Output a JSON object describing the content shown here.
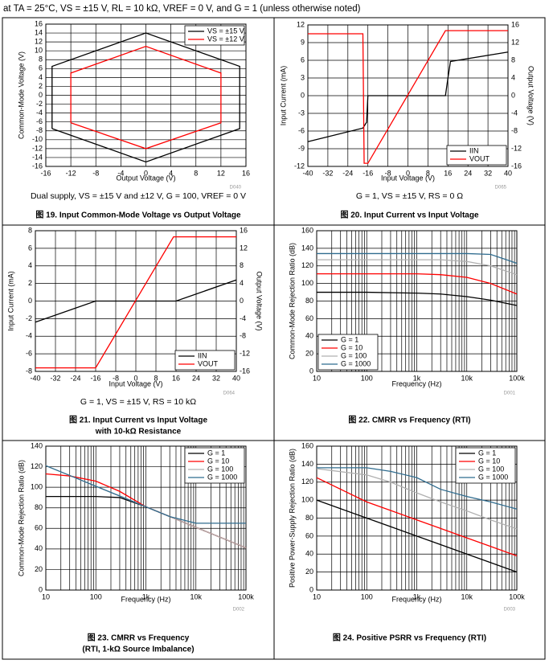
{
  "header": "at TA = 25°C, VS = ±15 V, RL = 10 kΩ, VREF = 0 V, and G = 1 (unless otherwise noted)",
  "chart_data": [
    {
      "type": "line",
      "caption": [
        "图 19. Input Common-Mode Voltage vs Output Voltage"
      ],
      "note": "Dual supply, VS = ±15 V and ±12 V, G = 100, VREF = 0 V",
      "code": "D040",
      "xlabel": "Output Voltage (V)",
      "ylabel": "Common-Mode Voltage (V)",
      "xlim": [
        -16,
        16
      ],
      "xticks": [
        -16,
        -12,
        -8,
        -4,
        0,
        4,
        8,
        12,
        16
      ],
      "ylim": [
        -16,
        16
      ],
      "yticks": [
        -16,
        -14,
        -12,
        -10,
        -8,
        -6,
        -4,
        -2,
        0,
        2,
        4,
        6,
        8,
        10,
        12,
        14,
        16
      ],
      "grid": true,
      "legend": "upper right",
      "series": [
        {
          "name": "VS = ±15 V",
          "color": "#000000",
          "x": [
            -15,
            -15,
            0,
            15,
            15,
            0,
            -15
          ],
          "values": [
            -7.5,
            6.5,
            14,
            6.5,
            -7.5,
            -15,
            -7.5
          ]
        },
        {
          "name": "VS = ±12 V",
          "color": "#ff0000",
          "x": [
            -12,
            -12,
            0,
            12,
            12,
            0,
            -12
          ],
          "values": [
            -6.2,
            5,
            11,
            5,
            -6.2,
            -12,
            -6.2
          ]
        }
      ]
    },
    {
      "type": "line",
      "caption": [
        "图 20. Input Current vs Input Voltage"
      ],
      "note": "G = 1, VS = ±15 V, RS = 0 Ω",
      "code": "D065",
      "xlabel": "Input Voltage (V)",
      "ylabel": "Input Current (mA)",
      "y2label": "Output Voltage (V)",
      "xlim": [
        -40,
        40
      ],
      "xticks": [
        -40,
        -32,
        -24,
        -16,
        -8,
        0,
        8,
        16,
        24,
        32,
        40
      ],
      "ylim": [
        -12,
        12
      ],
      "yticks": [
        -12,
        -9,
        -6,
        -3,
        0,
        3,
        6,
        9,
        12
      ],
      "y2lim": [
        -16,
        16
      ],
      "y2ticks": [
        -16,
        -12,
        -8,
        -4,
        0,
        4,
        8,
        12,
        16
      ],
      "grid": true,
      "legend": "lower right",
      "series": [
        {
          "name": "IIN",
          "color": "#000000",
          "x": [
            -40,
            -18,
            -16.5,
            -16,
            15,
            16,
            17,
            40
          ],
          "values": [
            -7.8,
            -5.5,
            -4.5,
            0,
            0,
            3,
            5.8,
            7.4
          ]
        },
        {
          "name": "VOUT",
          "color": "#ff0000",
          "axis": "y2",
          "x": [
            -40,
            -18,
            -17.5,
            -16,
            15,
            40
          ],
          "values": [
            14,
            14,
            -15.3,
            -15.3,
            14.7,
            14.7
          ]
        }
      ]
    },
    {
      "type": "line",
      "caption": [
        "图 21. Input Current vs Input Voltage",
        "with 10-kΩ Resistance"
      ],
      "note": "G = 1, VS = ±15 V, RS = 10 kΩ",
      "code": "D064",
      "xlabel": "Input Voltage (V)",
      "ylabel": "Input Current (mA)",
      "y2label": "Output Voltage (V)",
      "xlim": [
        -40,
        40
      ],
      "xticks": [
        -40,
        -32,
        -24,
        -16,
        -8,
        0,
        8,
        16,
        24,
        32,
        40
      ],
      "ylim": [
        -8,
        8
      ],
      "yticks": [
        -8,
        -6,
        -4,
        -2,
        0,
        2,
        4,
        6,
        8
      ],
      "y2lim": [
        -16,
        16
      ],
      "y2ticks": [
        -16,
        -12,
        -8,
        -4,
        0,
        4,
        8,
        12,
        16
      ],
      "grid": true,
      "legend": "lower right",
      "series": [
        {
          "name": "IIN",
          "color": "#000000",
          "x": [
            -40,
            -16,
            16,
            40
          ],
          "values": [
            -2.4,
            0,
            0,
            2.4
          ]
        },
        {
          "name": "VOUT",
          "color": "#ff0000",
          "axis": "y2",
          "x": [
            -40,
            -16,
            15,
            40
          ],
          "values": [
            -15.2,
            -15.2,
            14.6,
            14.6
          ]
        }
      ]
    },
    {
      "type": "line",
      "caption": [
        "图 22. CMRR vs Frequency (RTI)"
      ],
      "code": "D001",
      "xlabel": "Frequency (Hz)",
      "ylabel": "Common-Mode Rejection Ratio (dB)",
      "xlog": true,
      "xlim": [
        10,
        100000
      ],
      "xticks": [
        10,
        100,
        {
          "value": 1000,
          "label": "1k"
        },
        {
          "value": 10000,
          "label": "10k"
        },
        {
          "value": 100000,
          "label": "100k"
        }
      ],
      "ylim": [
        0,
        160
      ],
      "yticks": [
        0,
        20,
        40,
        60,
        80,
        100,
        120,
        140,
        160
      ],
      "grid": true,
      "legend": "lower left",
      "series": [
        {
          "name": "G = 1",
          "color": "#000000",
          "x": [
            10,
            100,
            1000,
            3000,
            10000,
            30000,
            100000
          ],
          "values": [
            90,
            90,
            89,
            88,
            85,
            81,
            75
          ]
        },
        {
          "name": "G = 10",
          "color": "#ff0000",
          "x": [
            10,
            100,
            1000,
            3000,
            10000,
            30000,
            100000
          ],
          "values": [
            111,
            111,
            111,
            110,
            107,
            100,
            88
          ]
        },
        {
          "name": "G = 100",
          "color": "#b0b0b0",
          "x": [
            10,
            100,
            1000,
            3000,
            10000,
            30000,
            100000
          ],
          "values": [
            127,
            127,
            127,
            127,
            125,
            120,
            110
          ]
        },
        {
          "name": "G = 1000",
          "color": "#2f6c8f",
          "x": [
            10,
            100,
            1000,
            3000,
            10000,
            30000,
            100000
          ],
          "values": [
            134,
            134,
            134,
            134,
            134,
            133,
            123
          ]
        }
      ]
    },
    {
      "type": "line",
      "caption": [
        "图 23. CMRR vs Frequency",
        "(RTI, 1-kΩ Source Imbalance)"
      ],
      "code": "D002",
      "xlabel": "Frequency (Hz)",
      "ylabel": "Common-Mode Rejection Ratio (dB)",
      "xlog": true,
      "xlim": [
        10,
        100000
      ],
      "xticks": [
        10,
        100,
        {
          "value": 1000,
          "label": "1k"
        },
        {
          "value": 10000,
          "label": "10k"
        },
        {
          "value": 100000,
          "label": "100k"
        }
      ],
      "ylim": [
        0,
        140
      ],
      "yticks": [
        0,
        20,
        40,
        60,
        80,
        100,
        120,
        140
      ],
      "grid": true,
      "legend": "upper right",
      "series": [
        {
          "name": "G = 1",
          "color": "#000000",
          "x": [
            10,
            30,
            100,
            300,
            1000,
            3000,
            10000,
            20000,
            30000,
            100000
          ],
          "values": [
            91,
            91,
            91,
            90,
            81,
            71.5,
            61,
            55,
            51.5,
            41
          ]
        },
        {
          "name": "G = 10",
          "color": "#ff0000",
          "x": [
            10,
            30,
            100,
            300,
            1000,
            3000,
            10000,
            20000,
            30000,
            100000
          ],
          "values": [
            113,
            111,
            106,
            96,
            81,
            71.5,
            61,
            55,
            51.5,
            41
          ]
        },
        {
          "name": "G = 100",
          "color": "#b0b0b0",
          "x": [
            10,
            30,
            100,
            300,
            1000,
            3000,
            10000,
            20000,
            30000,
            100000
          ],
          "values": [
            121,
            111.5,
            101,
            91.5,
            81,
            71.5,
            61,
            55,
            51.5,
            41
          ]
        },
        {
          "name": "G = 1000",
          "color": "#2f6c8f",
          "x": [
            10,
            30,
            100,
            300,
            1000,
            3000,
            10000,
            20000,
            30000,
            100000
          ],
          "values": [
            121,
            111.5,
            101,
            91.5,
            81,
            71.5,
            65,
            65,
            65,
            65
          ]
        }
      ]
    },
    {
      "type": "line",
      "caption": [
        "图 24. Positive PSRR vs Frequency (RTI)"
      ],
      "code": "D003",
      "xlabel": "Frequency (Hz)",
      "ylabel": "Positive Power-Supply Rejection Ratio (dB)",
      "xlog": true,
      "xlim": [
        10,
        100000
      ],
      "xticks": [
        10,
        100,
        {
          "value": 1000,
          "label": "1k"
        },
        {
          "value": 10000,
          "label": "10k"
        },
        {
          "value": 100000,
          "label": "100k"
        }
      ],
      "ylim": [
        0,
        160
      ],
      "yticks": [
        0,
        20,
        40,
        60,
        80,
        100,
        120,
        140,
        160
      ],
      "grid": true,
      "legend": "upper right",
      "series": [
        {
          "name": "G = 1",
          "color": "#000000",
          "x": [
            10,
            100,
            300,
            1000,
            3000,
            10000,
            30000,
            100000
          ],
          "values": [
            100,
            80,
            70.5,
            60,
            50.5,
            40,
            30.5,
            20
          ]
        },
        {
          "name": "G = 10",
          "color": "#ff0000",
          "x": [
            10,
            100,
            300,
            1000,
            3000,
            10000,
            30000,
            100000
          ],
          "values": [
            125,
            98,
            88.5,
            78,
            68.5,
            58,
            48.5,
            38
          ]
        },
        {
          "name": "G = 100",
          "color": "#b0b0b0",
          "x": [
            10,
            100,
            300,
            1000,
            3000,
            10000,
            30000,
            100000
          ],
          "values": [
            135,
            128,
            120,
            108,
            98,
            88,
            78,
            68
          ]
        },
        {
          "name": "G = 1000",
          "color": "#2f6c8f",
          "x": [
            10,
            100,
            300,
            1000,
            3000,
            10000,
            30000,
            100000
          ],
          "values": [
            136,
            136,
            132,
            125,
            112,
            104,
            98,
            90
          ]
        }
      ]
    }
  ]
}
